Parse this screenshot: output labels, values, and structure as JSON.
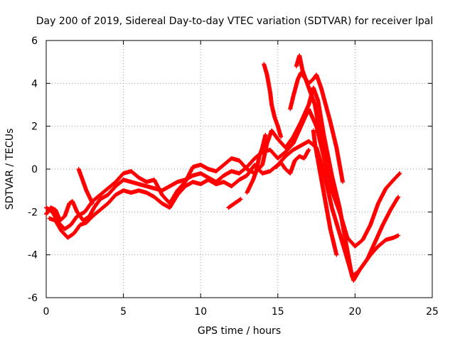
{
  "chart_data": {
    "type": "scatter",
    "title": "Day 200 of 2019, Sidereal Day-to-day VTEC variation (SDTVAR) for receiver lpal",
    "xlabel": "GPS time / hours",
    "ylabel": "SDTVAR / TECUs",
    "xlim": [
      0,
      25
    ],
    "ylim": [
      -6,
      6
    ],
    "xticks": [
      0,
      5,
      10,
      15,
      20,
      25
    ],
    "yticks": [
      -6,
      -4,
      -2,
      0,
      2,
      4,
      6
    ],
    "grid": true,
    "marker": "+",
    "series_color": "#ff0000",
    "series": [
      {
        "points": [
          [
            0,
            -2.1
          ],
          [
            0.3,
            -1.8
          ],
          [
            0.6,
            -1.9
          ],
          [
            0.9,
            -2.4
          ],
          [
            1.2,
            -2.2
          ],
          [
            1.5,
            -1.6
          ],
          [
            1.7,
            -1.5
          ],
          [
            2.0,
            -2.0
          ],
          [
            2.4,
            -2.4
          ],
          [
            2.8,
            -2.2
          ],
          [
            3.1,
            -1.8
          ],
          [
            3.5,
            -1.4
          ],
          [
            4.0,
            -1.2
          ],
          [
            4.5,
            -0.8
          ],
          [
            5.0,
            -0.5
          ],
          [
            5.5,
            -0.6
          ],
          [
            6.0,
            -0.7
          ],
          [
            6.5,
            -0.8
          ],
          [
            7.0,
            -0.9
          ],
          [
            7.5,
            -1.0
          ],
          [
            8.0,
            -0.8
          ],
          [
            8.5,
            -0.6
          ],
          [
            9.0,
            -0.5
          ],
          [
            9.5,
            -0.3
          ],
          [
            10.0,
            -0.2
          ],
          [
            10.5,
            -0.4
          ],
          [
            11.0,
            -0.6
          ],
          [
            11.5,
            -0.3
          ],
          [
            12.0,
            -0.1
          ],
          [
            12.5,
            -0.2
          ],
          [
            13.0,
            0.1
          ],
          [
            13.5,
            0.5
          ],
          [
            14.0,
            0.8
          ],
          [
            14.5,
            0.9
          ],
          [
            15.0,
            0.5
          ],
          [
            15.5,
            0.8
          ],
          [
            16.0,
            1.2
          ],
          [
            16.5,
            2.0
          ],
          [
            17.0,
            2.8
          ],
          [
            17.5,
            2.0
          ],
          [
            18.0,
            0.5
          ],
          [
            18.5,
            -1.0
          ],
          [
            19.0,
            -2.0
          ],
          [
            19.5,
            -3.2
          ],
          [
            20.0,
            -3.6
          ],
          [
            20.5,
            -3.3
          ],
          [
            21.0,
            -2.6
          ],
          [
            21.5,
            -1.6
          ],
          [
            22.0,
            -0.9
          ],
          [
            22.5,
            -0.5
          ],
          [
            22.9,
            -0.2
          ]
        ]
      },
      {
        "points": [
          [
            0,
            -1.8
          ],
          [
            0.4,
            -2.0
          ],
          [
            0.8,
            -2.5
          ],
          [
            1.2,
            -2.8
          ],
          [
            1.6,
            -2.6
          ],
          [
            2.0,
            -2.2
          ],
          [
            2.5,
            -2.0
          ],
          [
            3.0,
            -1.5
          ],
          [
            3.5,
            -1.2
          ],
          [
            4.0,
            -0.9
          ],
          [
            4.5,
            -0.6
          ],
          [
            5.0,
            -0.2
          ],
          [
            5.5,
            -0.1
          ],
          [
            6.0,
            -0.4
          ],
          [
            6.5,
            -0.6
          ],
          [
            7.0,
            -0.5
          ],
          [
            7.5,
            -1.2
          ],
          [
            8.0,
            -1.6
          ],
          [
            8.5,
            -1.0
          ],
          [
            9.0,
            -0.6
          ],
          [
            9.5,
            0.1
          ],
          [
            10.0,
            0.2
          ],
          [
            10.5,
            0.0
          ],
          [
            11.0,
            -0.1
          ],
          [
            11.5,
            0.2
          ],
          [
            12.0,
            0.5
          ],
          [
            12.5,
            0.4
          ],
          [
            13.0,
            0.0
          ],
          [
            13.5,
            -0.2
          ],
          [
            14.0,
            0.2
          ],
          [
            14.3,
            1.2
          ],
          [
            14.6,
            1.8
          ],
          [
            15.0,
            1.4
          ],
          [
            15.5,
            1.0
          ],
          [
            16.0,
            1.5
          ],
          [
            16.5,
            2.2
          ],
          [
            17.0,
            3.0
          ],
          [
            17.3,
            3.8
          ],
          [
            17.6,
            3.2
          ],
          [
            18.0,
            1.5
          ],
          [
            18.5,
            -0.3
          ],
          [
            19.0,
            -1.8
          ],
          [
            19.5,
            -3.8
          ],
          [
            19.8,
            -5.0
          ],
          [
            20.2,
            -4.8
          ],
          [
            20.6,
            -4.4
          ],
          [
            21.0,
            -4.0
          ],
          [
            21.5,
            -3.6
          ],
          [
            22.0,
            -3.3
          ],
          [
            22.5,
            -3.2
          ],
          [
            22.8,
            -3.1
          ]
        ]
      },
      {
        "points": [
          [
            0.2,
            -2.3
          ],
          [
            0.6,
            -2.4
          ],
          [
            1.0,
            -2.9
          ],
          [
            1.4,
            -3.2
          ],
          [
            1.8,
            -3.0
          ],
          [
            2.2,
            -2.6
          ],
          [
            2.6,
            -2.5
          ],
          [
            3.0,
            -2.2
          ],
          [
            3.5,
            -1.9
          ],
          [
            4.0,
            -1.6
          ],
          [
            4.5,
            -1.2
          ],
          [
            5.0,
            -1.0
          ],
          [
            5.5,
            -1.1
          ],
          [
            6.0,
            -1.0
          ],
          [
            6.5,
            -1.1
          ],
          [
            7.0,
            -1.3
          ],
          [
            7.5,
            -1.6
          ],
          [
            8.0,
            -1.8
          ],
          [
            8.5,
            -1.2
          ],
          [
            9.0,
            -0.8
          ],
          [
            9.5,
            -0.6
          ],
          [
            10.0,
            -0.7
          ],
          [
            10.5,
            -0.5
          ],
          [
            11.0,
            -0.7
          ],
          [
            11.5,
            -0.6
          ],
          [
            12.0,
            -0.8
          ],
          [
            12.5,
            -0.5
          ],
          [
            13.0,
            -0.3
          ],
          [
            13.5,
            0.2
          ],
          [
            14.0,
            -0.2
          ],
          [
            14.5,
            -0.1
          ],
          [
            15.0,
            0.2
          ],
          [
            15.5,
            0.6
          ],
          [
            16.0,
            0.9
          ],
          [
            16.5,
            1.1
          ],
          [
            17.0,
            1.3
          ],
          [
            17.5,
            1.0
          ],
          [
            18.0,
            -0.2
          ],
          [
            18.5,
            -1.8
          ],
          [
            19.0,
            -3.0
          ],
          [
            19.5,
            -4.2
          ],
          [
            19.9,
            -5.2
          ],
          [
            20.3,
            -4.7
          ],
          [
            20.8,
            -4.2
          ],
          [
            21.3,
            -3.4
          ],
          [
            21.8,
            -2.6
          ],
          [
            22.3,
            -1.9
          ],
          [
            22.8,
            -1.3
          ]
        ]
      },
      {
        "points": [
          [
            2.1,
            0.0
          ],
          [
            2.2,
            -0.2
          ],
          [
            2.4,
            -0.6
          ],
          [
            2.6,
            -1.0
          ],
          [
            2.8,
            -1.3
          ],
          [
            3.0,
            -1.6
          ]
        ]
      },
      {
        "points": [
          [
            11.8,
            -1.8
          ],
          [
            12.0,
            -1.7
          ],
          [
            12.2,
            -1.6
          ],
          [
            12.4,
            -1.5
          ],
          [
            12.6,
            -1.4
          ]
        ]
      },
      {
        "points": [
          [
            14.1,
            4.9
          ],
          [
            14.3,
            4.4
          ],
          [
            14.5,
            3.6
          ],
          [
            14.6,
            3.0
          ],
          [
            14.8,
            2.4
          ],
          [
            15.0,
            2.0
          ],
          [
            15.2,
            1.5
          ]
        ]
      },
      {
        "points": [
          [
            15.8,
            2.8
          ],
          [
            16.0,
            3.4
          ],
          [
            16.3,
            4.2
          ],
          [
            16.5,
            4.5
          ],
          [
            16.8,
            4.2
          ],
          [
            17.1,
            3.6
          ],
          [
            17.4,
            3.0
          ],
          [
            17.6,
            2.2
          ],
          [
            17.8,
            1.6
          ],
          [
            18.0,
            1.0
          ],
          [
            18.2,
            0.4
          ]
        ]
      },
      {
        "points": [
          [
            16.2,
            4.8
          ],
          [
            16.4,
            5.3
          ],
          [
            16.6,
            4.6
          ],
          [
            16.8,
            4.2
          ],
          [
            17.0,
            4.0
          ],
          [
            17.3,
            4.2
          ],
          [
            17.5,
            4.4
          ],
          [
            17.8,
            3.8
          ],
          [
            18.1,
            3.0
          ],
          [
            18.4,
            2.2
          ],
          [
            18.8,
            1.0
          ],
          [
            19.2,
            -0.6
          ]
        ]
      },
      {
        "points": [
          [
            17.3,
            1.8
          ],
          [
            17.4,
            1.2
          ],
          [
            17.6,
            0.4
          ],
          [
            17.8,
            -0.4
          ],
          [
            18.0,
            -1.2
          ],
          [
            18.2,
            -2.0
          ],
          [
            18.4,
            -2.8
          ],
          [
            18.6,
            -3.4
          ],
          [
            18.8,
            -4.0
          ]
        ]
      },
      {
        "points": [
          [
            14.9,
            0.1
          ],
          [
            15.2,
            0.3
          ],
          [
            15.5,
            0.0
          ],
          [
            15.8,
            -0.2
          ],
          [
            16.1,
            0.4
          ],
          [
            16.4,
            0.6
          ],
          [
            16.7,
            0.5
          ],
          [
            17.0,
            0.9
          ]
        ]
      },
      {
        "points": [
          [
            13.0,
            -1.1
          ],
          [
            13.2,
            -0.8
          ],
          [
            13.4,
            -0.5
          ],
          [
            13.6,
            -0.1
          ],
          [
            13.8,
            0.6
          ],
          [
            14.0,
            1.0
          ],
          [
            14.2,
            1.6
          ]
        ]
      }
    ]
  }
}
